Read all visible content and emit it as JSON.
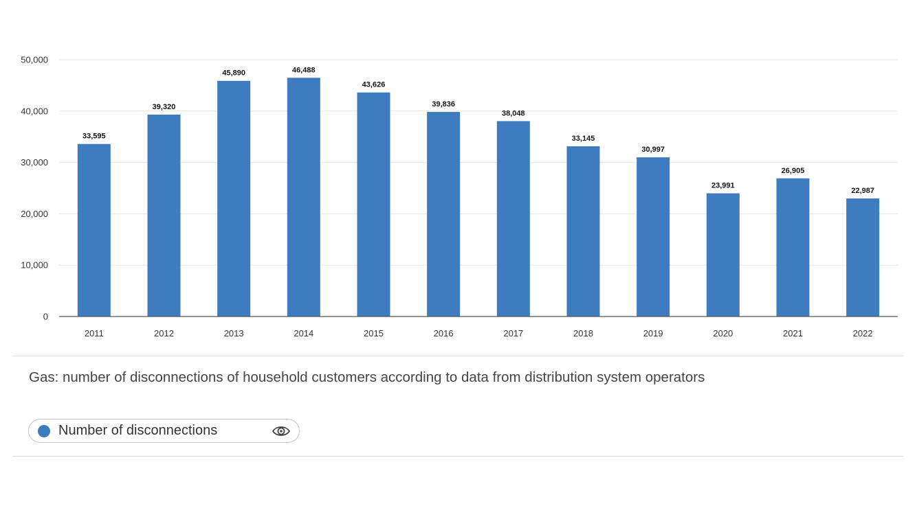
{
  "chart_data": {
    "type": "bar",
    "title": "",
    "xlabel": "",
    "ylabel": "",
    "categories": [
      "2011",
      "2012",
      "2013",
      "2014",
      "2015",
      "2016",
      "2017",
      "2018",
      "2019",
      "2020",
      "2021",
      "2022"
    ],
    "series": [
      {
        "name": "Number of disconnections",
        "values": [
          33595,
          39320,
          45890,
          46488,
          43626,
          39836,
          38048,
          33145,
          30997,
          23991,
          26905,
          22987
        ],
        "labels": [
          "33,595",
          "39,320",
          "45,890",
          "46,488",
          "43,626",
          "39,836",
          "38,048",
          "33,145",
          "30,997",
          "23,991",
          "26,905",
          "22,987"
        ],
        "color": "#3f7bbf"
      }
    ],
    "ylim": [
      0,
      50000
    ],
    "yticks": [
      0,
      10000,
      20000,
      30000,
      40000,
      50000
    ],
    "ytick_labels": [
      "0",
      "10,000",
      "20,000",
      "30,000",
      "40,000",
      "50,000"
    ],
    "grid": true,
    "legend_position": "bottom-left"
  },
  "caption": "Gas: number of disconnections of household customers according to data from distribution system operators",
  "legend": {
    "items": [
      {
        "label": "Number of disconnections",
        "color": "#3f7bbf",
        "icon": "eye-icon"
      }
    ]
  }
}
